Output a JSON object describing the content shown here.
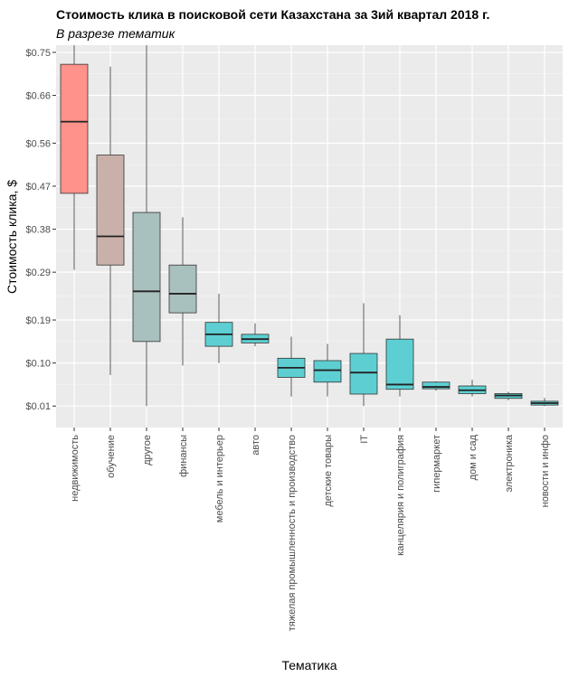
{
  "chart_data": {
    "type": "boxplot",
    "title": "Стоимость клика в поисковой сети Казахстана за 3ий квартал 2018 г.",
    "subtitle": "В разрезе тематик",
    "xlabel": "Тематика",
    "ylabel": "Стоимость клика, $",
    "ylim": [
      -0.035,
      0.765
    ],
    "y_ticks": [
      0.01,
      0.1,
      0.19,
      0.29,
      0.38,
      0.47,
      0.56,
      0.66,
      0.75
    ],
    "y_tick_labels": [
      "$0.01",
      "$0.10",
      "$0.19",
      "$0.29",
      "$0.38",
      "$0.47",
      "$0.56",
      "$0.66",
      "$0.75"
    ],
    "grid": true,
    "categories": [
      "недвижимость",
      "обучение",
      "другое",
      "финансы",
      "мебель и интерьер",
      "авто",
      "тяжелая промышленность и производство",
      "детские товары",
      "IT",
      "канцелярия и полиграфия",
      "гипермаркет",
      "дом и сад",
      "электроника",
      "новости и инфо"
    ],
    "boxes": [
      {
        "category": "недвижимость",
        "min": 0.295,
        "q1": 0.455,
        "median": 0.605,
        "q3": 0.725,
        "max": 0.765,
        "color": "#ff928a"
      },
      {
        "category": "обучение",
        "min": 0.075,
        "q1": 0.305,
        "median": 0.365,
        "q3": 0.535,
        "max": 0.72,
        "color": "#c9b1aa"
      },
      {
        "category": "другое",
        "min": 0.01,
        "q1": 0.145,
        "median": 0.25,
        "q3": 0.415,
        "max": 0.765,
        "color": "#a8c0be"
      },
      {
        "category": "финансы",
        "min": 0.095,
        "q1": 0.205,
        "median": 0.245,
        "q3": 0.305,
        "max": 0.405,
        "color": "#a8c0be"
      },
      {
        "category": "мебель и интерьер",
        "min": 0.1,
        "q1": 0.135,
        "median": 0.16,
        "q3": 0.185,
        "max": 0.245,
        "color": "#5dcfd2"
      },
      {
        "category": "авто",
        "min": 0.135,
        "q1": 0.142,
        "median": 0.15,
        "q3": 0.16,
        "max": 0.183,
        "color": "#5dcfd2"
      },
      {
        "category": "тяжелая промышленность и производство",
        "min": 0.03,
        "q1": 0.07,
        "median": 0.09,
        "q3": 0.11,
        "max": 0.155,
        "color": "#5dcfd2"
      },
      {
        "category": "детские товары",
        "min": 0.03,
        "q1": 0.06,
        "median": 0.085,
        "q3": 0.105,
        "max": 0.14,
        "color": "#5dcfd2"
      },
      {
        "category": "IT",
        "min": 0.01,
        "q1": 0.035,
        "median": 0.08,
        "q3": 0.12,
        "max": 0.225,
        "color": "#5dcfd2"
      },
      {
        "category": "канцелярия и полиграфия",
        "min": 0.03,
        "q1": 0.045,
        "median": 0.055,
        "q3": 0.15,
        "max": 0.2,
        "color": "#5dcfd2"
      },
      {
        "category": "гипермаркет",
        "min": 0.042,
        "q1": 0.046,
        "median": 0.05,
        "q3": 0.06,
        "max": 0.062,
        "color": "#5dcfd2"
      },
      {
        "category": "дом и сад",
        "min": 0.03,
        "q1": 0.036,
        "median": 0.043,
        "q3": 0.052,
        "max": 0.065,
        "color": "#5dcfd2"
      },
      {
        "category": "электроника",
        "min": 0.022,
        "q1": 0.026,
        "median": 0.032,
        "q3": 0.036,
        "max": 0.04,
        "color": "#5dcfd2"
      },
      {
        "category": "новости и инфо",
        "min": 0.01,
        "q1": 0.012,
        "median": 0.016,
        "q3": 0.02,
        "max": 0.027,
        "color": "#5dcfd2"
      }
    ]
  }
}
